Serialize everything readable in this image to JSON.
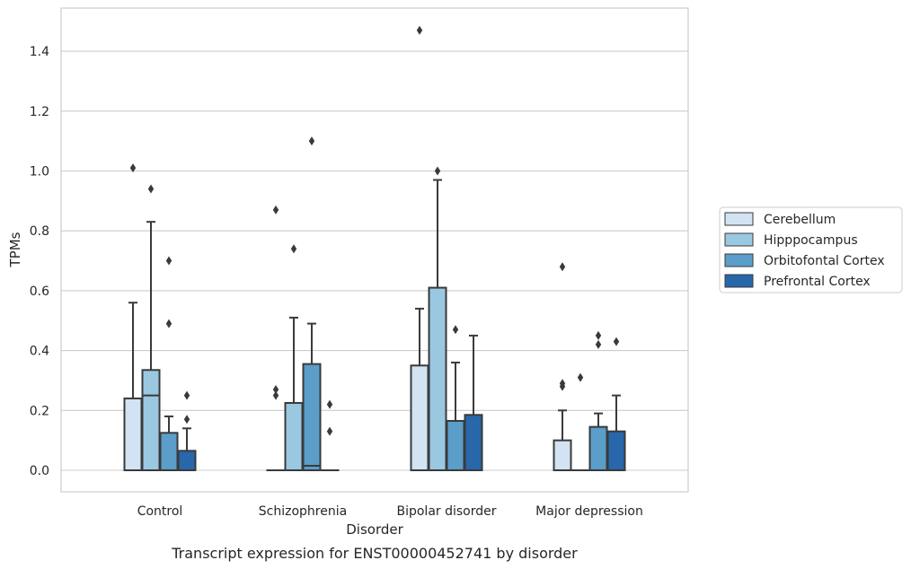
{
  "chart_data": {
    "type": "box",
    "xlabel": "Disorder",
    "ylabel": "TPMs",
    "caption": "Transcript expression for ENST00000452741 by disorder",
    "ylim": [
      -0.07,
      1.545
    ],
    "yticks": [
      "0.0",
      "0.2",
      "0.4",
      "0.6",
      "0.8",
      "1.0",
      "1.2",
      "1.4"
    ],
    "grid": "horizontal",
    "legend_position": "right",
    "categories": [
      "Control",
      "Schizophrenia",
      "Bipolar disorder",
      "Major depression"
    ],
    "series": [
      {
        "name": "Cerebellum",
        "color": "#d2e3f3",
        "boxes": [
          {
            "q1": 0,
            "median": 0,
            "q3": 0.24,
            "whisker_low": 0,
            "whisker_high": 0.56,
            "outliers": [
              1.01
            ]
          },
          {
            "q1": 0,
            "median": 0,
            "q3": 0,
            "whisker_low": 0,
            "whisker_high": 0,
            "outliers": [
              0.25,
              0.27,
              0.87
            ]
          },
          {
            "q1": 0,
            "median": 0,
            "q3": 0.35,
            "whisker_low": 0,
            "whisker_high": 0.54,
            "outliers": [
              1.47
            ]
          },
          {
            "q1": 0,
            "median": 0,
            "q3": 0.1,
            "whisker_low": 0,
            "whisker_high": 0.2,
            "outliers": [
              0.28,
              0.29,
              0.68
            ]
          }
        ]
      },
      {
        "name": "Hipppocampus",
        "color": "#9ac8e0",
        "boxes": [
          {
            "q1": 0,
            "median": 0.25,
            "q3": 0.335,
            "whisker_low": 0,
            "whisker_high": 0.83,
            "outliers": [
              0.94
            ]
          },
          {
            "q1": 0,
            "median": 0,
            "q3": 0.225,
            "whisker_low": 0,
            "whisker_high": 0.51,
            "outliers": [
              0.74
            ]
          },
          {
            "q1": 0,
            "median": 0,
            "q3": 0.61,
            "whisker_low": 0,
            "whisker_high": 0.97,
            "outliers": [
              1.0
            ]
          },
          {
            "q1": 0,
            "median": 0,
            "q3": 0,
            "whisker_low": 0,
            "whisker_high": 0,
            "outliers": [
              0.31
            ]
          }
        ]
      },
      {
        "name": "Orbitofontal Cortex",
        "color": "#5a9ec9",
        "boxes": [
          {
            "q1": 0,
            "median": 0,
            "q3": 0.125,
            "whisker_low": 0,
            "whisker_high": 0.18,
            "outliers": [
              0.49,
              0.7
            ]
          },
          {
            "q1": 0,
            "median": 0.015,
            "q3": 0.355,
            "whisker_low": 0,
            "whisker_high": 0.49,
            "outliers": [
              1.1
            ]
          },
          {
            "q1": 0,
            "median": 0,
            "q3": 0.165,
            "whisker_low": 0,
            "whisker_high": 0.36,
            "outliers": [
              0.47
            ]
          },
          {
            "q1": 0,
            "median": 0,
            "q3": 0.145,
            "whisker_low": 0,
            "whisker_high": 0.19,
            "outliers": [
              0.42,
              0.45
            ]
          }
        ]
      },
      {
        "name": "Prefrontal Cortex",
        "color": "#2767aa",
        "boxes": [
          {
            "q1": 0,
            "median": 0,
            "q3": 0.065,
            "whisker_low": 0,
            "whisker_high": 0.14,
            "outliers": [
              0.17,
              0.25
            ]
          },
          {
            "q1": 0,
            "median": 0,
            "q3": 0,
            "whisker_low": 0,
            "whisker_high": 0,
            "outliers": [
              0.13,
              0.22
            ]
          },
          {
            "q1": 0,
            "median": 0,
            "q3": 0.185,
            "whisker_low": 0,
            "whisker_high": 0.45,
            "outliers": []
          },
          {
            "q1": 0,
            "median": 0,
            "q3": 0.13,
            "whisker_low": 0,
            "whisker_high": 0.25,
            "outliers": [
              0.43
            ]
          }
        ]
      }
    ]
  }
}
